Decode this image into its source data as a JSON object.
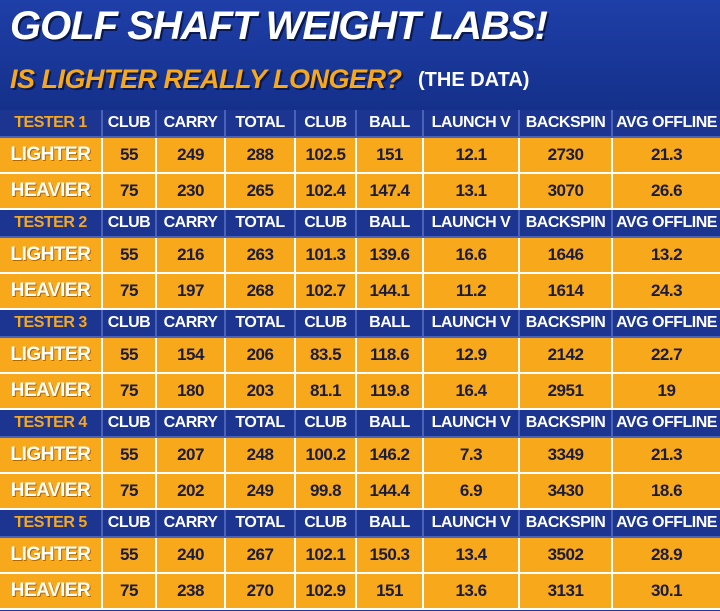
{
  "header": {
    "title": "GOLF SHAFT WEIGHT LABS!",
    "subtitle": "IS LIGHTER REALLY LONGER?",
    "note": "(THE DATA)"
  },
  "table": {
    "groups": [
      {
        "header": [
          "TESTER 1",
          "CLUB",
          "CARRY",
          "TOTAL",
          "CLUB",
          "BALL",
          "LAUNCH V",
          "BACKSPIN",
          "AVG OFFLINE"
        ],
        "rows": [
          [
            "LIGHTER",
            "55",
            "249",
            "288",
            "102.5",
            "151",
            "12.1",
            "2730",
            "21.3"
          ],
          [
            "HEAVIER",
            "75",
            "230",
            "265",
            "102.4",
            "147.4",
            "13.1",
            "3070",
            "26.6"
          ]
        ]
      },
      {
        "header": [
          "TESTER 2",
          "CLUB",
          "CARRY",
          "TOTAL",
          "CLUB",
          "BALL",
          "LAUNCH V",
          "BACKSPIN",
          "AVG OFFLINE"
        ],
        "rows": [
          [
            "LIGHTER",
            "55",
            "216",
            "263",
            "101.3",
            "139.6",
            "16.6",
            "1646",
            "13.2"
          ],
          [
            "HEAVIER",
            "75",
            "197",
            "268",
            "102.7",
            "144.1",
            "11.2",
            "1614",
            "24.3"
          ]
        ]
      },
      {
        "header": [
          "TESTER 3",
          "CLUB",
          "CARRY",
          "TOTAL",
          "CLUB",
          "BALL",
          "LAUNCH V",
          "BACKSPIN",
          "AVG OFFLINE"
        ],
        "rows": [
          [
            "LIGHTER",
            "55",
            "154",
            "206",
            "83.5",
            "118.6",
            "12.9",
            "2142",
            "22.7"
          ],
          [
            "HEAVIER",
            "75",
            "180",
            "203",
            "81.1",
            "119.8",
            "16.4",
            "2951",
            "19"
          ]
        ]
      },
      {
        "header": [
          "TESTER 4",
          "CLUB",
          "CARRY",
          "TOTAL",
          "CLUB",
          "BALL",
          "LAUNCH V",
          "BACKSPIN",
          "AVG OFFLINE"
        ],
        "rows": [
          [
            "LIGHTER",
            "55",
            "207",
            "248",
            "100.2",
            "146.2",
            "7.3",
            "3349",
            "21.3"
          ],
          [
            "HEAVIER",
            "75",
            "202",
            "249",
            "99.8",
            "144.4",
            "6.9",
            "3430",
            "18.6"
          ]
        ]
      },
      {
        "header": [
          "TESTER 5",
          "CLUB",
          "CARRY",
          "TOTAL",
          "CLUB",
          "BALL",
          "LAUNCH V",
          "BACKSPIN",
          "AVG OFFLINE"
        ],
        "rows": [
          [
            "LIGHTER",
            "55",
            "240",
            "267",
            "102.1",
            "150.3",
            "13.4",
            "3502",
            "28.9"
          ],
          [
            "HEAVIER",
            "75",
            "238",
            "270",
            "102.9",
            "151",
            "13.6",
            "3131",
            "30.1"
          ]
        ]
      }
    ]
  }
}
